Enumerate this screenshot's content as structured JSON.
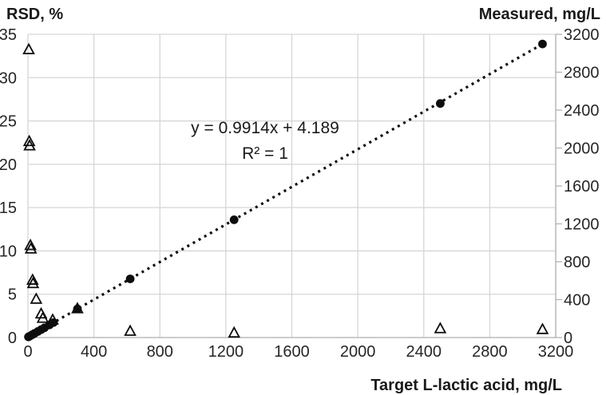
{
  "chart_data": {
    "type": "scatter",
    "title": "",
    "x_axis": {
      "title": "Target L-lactic acid, mg/L",
      "min": 0,
      "max": 3200,
      "tick_labels": [
        "0",
        "400",
        "800",
        "1200",
        "1600",
        "2000",
        "2400",
        "2800",
        "3200"
      ]
    },
    "left_axis": {
      "title": "RSD, %",
      "min": 0,
      "max": 35,
      "tick_labels": [
        "0",
        "5",
        "10",
        "15",
        "20",
        "25",
        "30",
        "35"
      ]
    },
    "right_axis": {
      "title": "Measured, mg/L",
      "min": 0,
      "max": 3200,
      "tick_labels": [
        "0",
        "400",
        "800",
        "1200",
        "1600",
        "2000",
        "2400",
        "2800",
        "3200"
      ]
    },
    "annotation": {
      "equation": "y = 0.9914x + 4.189",
      "r_squared": "R² = 1"
    },
    "grid": true,
    "legend": "none",
    "series": [
      {
        "name": "RSD",
        "axis": "left",
        "marker": "open-triangle",
        "points": [
          [
            5,
            33.2
          ],
          [
            8,
            22.6
          ],
          [
            10,
            22.1
          ],
          [
            15,
            10.6
          ],
          [
            18,
            10.2
          ],
          [
            28,
            6.6
          ],
          [
            31,
            6.2
          ],
          [
            50,
            4.4
          ],
          [
            80,
            2.7
          ],
          [
            90,
            2.2
          ],
          [
            150,
            2.0
          ],
          [
            300,
            3.3
          ],
          [
            620,
            0.7
          ],
          [
            1250,
            0.5
          ],
          [
            2500,
            1.0
          ],
          [
            3120,
            0.9
          ]
        ]
      },
      {
        "name": "Measured",
        "axis": "right",
        "marker": "filled-circle",
        "points": [
          [
            3,
            7
          ],
          [
            10,
            14
          ],
          [
            25,
            29
          ],
          [
            40,
            44
          ],
          [
            60,
            64
          ],
          [
            80,
            84
          ],
          [
            100,
            103
          ],
          [
            130,
            133
          ],
          [
            155,
            158
          ],
          [
            300,
            302
          ],
          [
            620,
            619
          ],
          [
            1250,
            1243
          ],
          [
            2500,
            2470
          ],
          [
            3120,
            3098
          ]
        ]
      }
    ],
    "trendline": {
      "style": "dotted",
      "slope": 0.9914,
      "intercept": 4.189,
      "x_start": 0,
      "x_end": 3120
    },
    "colors": {
      "marker": "#0d0d0d",
      "gridline": "#d6d6d6",
      "axis": "#b3b3b3",
      "text": "#262626"
    }
  }
}
